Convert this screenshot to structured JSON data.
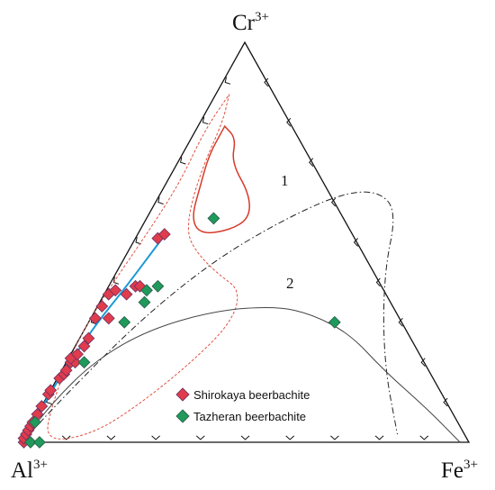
{
  "chart_data": {
    "type": "scatter",
    "vertices": {
      "top": {
        "base": "Cr",
        "sup": "3+"
      },
      "left": {
        "base": "Al",
        "sup": "3+"
      },
      "right": {
        "base": "Fe",
        "sup": "3+"
      }
    },
    "curve_labels": {
      "curve1": "1",
      "curve2": "2"
    },
    "legend": [
      {
        "label": "Shirokaya beerbachite",
        "color": "#e03c4c"
      },
      {
        "label": "Tazheran beerbachite",
        "color": "#1f9a5a"
      }
    ],
    "series": [
      {
        "name": "Shirokaya beerbachite",
        "color": "#e03c4c",
        "points": [
          {
            "cr": 0.0,
            "fe": 0.005
          },
          {
            "cr": 0.01,
            "fe": 0.0
          },
          {
            "cr": 0.02,
            "fe": 0.0
          },
          {
            "cr": 0.03,
            "fe": 0.0
          },
          {
            "cr": 0.04,
            "fe": 0.0
          },
          {
            "cr": 0.05,
            "fe": 0.0
          },
          {
            "cr": 0.07,
            "fe": 0.0
          },
          {
            "cr": 0.09,
            "fe": 0.0
          },
          {
            "cr": 0.12,
            "fe": 0.0
          },
          {
            "cr": 0.13,
            "fe": 0.0
          },
          {
            "cr": 0.16,
            "fe": 0.005
          },
          {
            "cr": 0.17,
            "fe": 0.01
          },
          {
            "cr": 0.18,
            "fe": 0.01
          },
          {
            "cr": 0.2,
            "fe": 0.01
          },
          {
            "cr": 0.2,
            "fe": 0.02
          },
          {
            "cr": 0.21,
            "fe": 0.005
          },
          {
            "cr": 0.22,
            "fe": 0.015
          },
          {
            "cr": 0.24,
            "fe": 0.02
          },
          {
            "cr": 0.26,
            "fe": 0.02
          },
          {
            "cr": 0.31,
            "fe": 0.01
          },
          {
            "cr": 0.31,
            "fe": 0.04
          },
          {
            "cr": 0.34,
            "fe": 0.01
          },
          {
            "cr": 0.37,
            "fe": 0.01
          },
          {
            "cr": 0.37,
            "fe": 0.05
          },
          {
            "cr": 0.38,
            "fe": 0.02
          },
          {
            "cr": 0.39,
            "fe": 0.06
          },
          {
            "cr": 0.39,
            "fe": 0.07
          },
          {
            "cr": 0.51,
            "fe": 0.05
          },
          {
            "cr": 0.52,
            "fe": 0.06
          }
        ]
      },
      {
        "name": "Tazheran beerbachite",
        "color": "#1f9a5a",
        "points": [
          {
            "cr": 0.0,
            "fe": 0.02
          },
          {
            "cr": 0.0,
            "fe": 0.04
          },
          {
            "cr": 0.05,
            "fe": 0.005
          },
          {
            "cr": 0.2,
            "fe": 0.04
          },
          {
            "cr": 0.3,
            "fe": 0.08
          },
          {
            "cr": 0.35,
            "fe": 0.1
          },
          {
            "cr": 0.38,
            "fe": 0.09
          },
          {
            "cr": 0.39,
            "fe": 0.11
          },
          {
            "cr": 0.56,
            "fe": 0.15
          },
          {
            "cr": 0.3,
            "fe": 0.55
          }
        ]
      }
    ],
    "curves": {
      "curve1": {
        "style": "dash-dot",
        "points": [
          [
            0,
            0.0
          ],
          [
            0.12,
            0.04
          ],
          [
            0.3,
            0.11
          ],
          [
            0.45,
            0.2
          ],
          [
            0.55,
            0.3
          ],
          [
            0.62,
            0.4
          ],
          [
            0.63,
            0.48
          ],
          [
            0.58,
            0.55
          ],
          [
            0.42,
            0.6
          ],
          [
            0.2,
            0.71
          ],
          [
            0.02,
            0.83
          ]
        ]
      },
      "curve2": {
        "style": "solid",
        "points": [
          [
            0,
            0.0
          ],
          [
            0.1,
            0.02
          ],
          [
            0.2,
            0.06
          ],
          [
            0.28,
            0.14
          ],
          [
            0.33,
            0.27
          ],
          [
            0.34,
            0.4
          ],
          [
            0.32,
            0.49
          ],
          [
            0.27,
            0.6
          ],
          [
            0.18,
            0.72
          ],
          [
            0.08,
            0.87
          ],
          [
            0.0,
            0.98
          ]
        ]
      },
      "trend_line": {
        "style": "solid",
        "color": "#1a9ad6",
        "points": [
          [
            0.0,
            0.01
          ],
          [
            0.1,
            0.0
          ],
          [
            0.21,
            0.01
          ],
          [
            0.3,
            0.02
          ],
          [
            0.39,
            0.04
          ],
          [
            0.51,
            0.06
          ]
        ]
      },
      "outer_field": {
        "style": "dashed",
        "color": "#e05040",
        "points": [
          [
            0.87,
            0.03
          ],
          [
            0.8,
            0.05
          ],
          [
            0.7,
            0.06
          ],
          [
            0.6,
            0.08
          ],
          [
            0.52,
            0.11
          ],
          [
            0.47,
            0.16
          ],
          [
            0.42,
            0.23
          ],
          [
            0.38,
            0.3
          ],
          [
            0.3,
            0.32
          ],
          [
            0.2,
            0.28
          ],
          [
            0.1,
            0.22
          ],
          [
            0.02,
            0.15
          ],
          [
            0.0,
            0.05
          ],
          [
            0.1,
            0.02
          ],
          [
            0.22,
            0.0
          ],
          [
            0.35,
            0.0
          ],
          [
            0.52,
            0.02
          ],
          [
            0.65,
            0.03
          ],
          [
            0.78,
            0.02
          ],
          [
            0.87,
            0.03
          ]
        ]
      },
      "inner_field": {
        "style": "solid",
        "color": "#d63a2a",
        "points": [
          [
            0.79,
            0.06
          ],
          [
            0.72,
            0.06
          ],
          [
            0.64,
            0.08
          ],
          [
            0.56,
            0.1
          ],
          [
            0.52,
            0.14
          ],
          [
            0.53,
            0.2
          ],
          [
            0.56,
            0.23
          ],
          [
            0.62,
            0.2
          ],
          [
            0.7,
            0.12
          ],
          [
            0.76,
            0.1
          ],
          [
            0.79,
            0.06
          ]
        ]
      }
    }
  }
}
